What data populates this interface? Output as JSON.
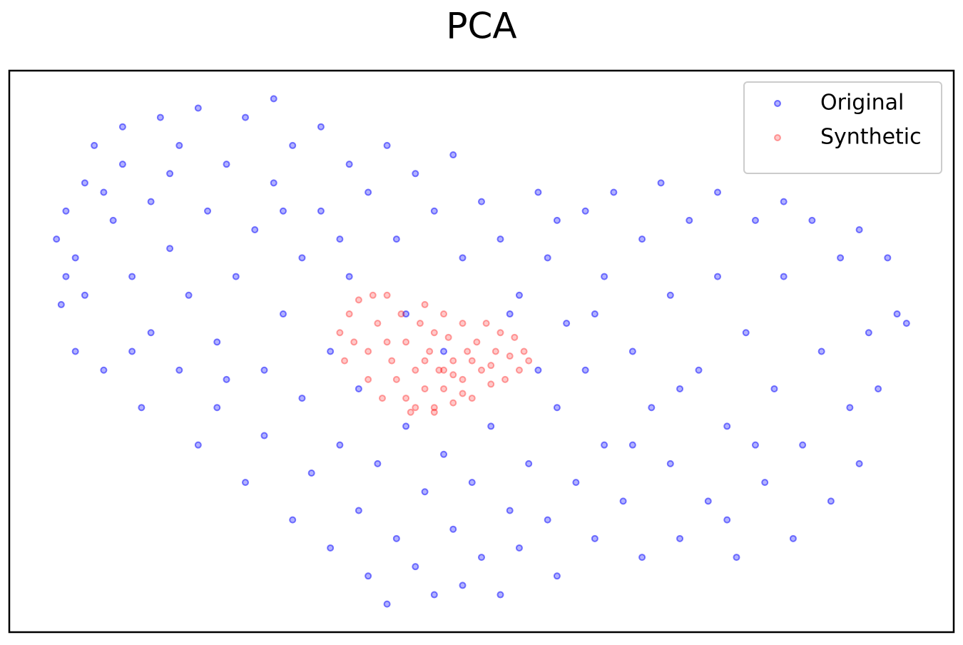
{
  "chart_data": {
    "type": "scatter",
    "title": "PCA",
    "legend": "upper right",
    "xlim": [
      0,
      100
    ],
    "ylim": [
      0,
      60
    ],
    "series": [
      {
        "name": "Original",
        "color": "#0000ff",
        "x": [
          5,
          5.5,
          6,
          7,
          7,
          8,
          9,
          8,
          10,
          11,
          12,
          12,
          13,
          14,
          15,
          15,
          16,
          17,
          18,
          18,
          19,
          20,
          20,
          21,
          22,
          22,
          23,
          24,
          25,
          25,
          26,
          27,
          27,
          28,
          28,
          29,
          30,
          30,
          31,
          31,
          32,
          33,
          33,
          34,
          34,
          35,
          36,
          36,
          37,
          37,
          38,
          38,
          39,
          40,
          40,
          41,
          41,
          42,
          43,
          43,
          44,
          45,
          45,
          46,
          47,
          47,
          48,
          48,
          49,
          50,
          50,
          51,
          52,
          52,
          53,
          54,
          54,
          55,
          56,
          56,
          57,
          57,
          58,
          58,
          59,
          60,
          61,
          61,
          62,
          63,
          63,
          64,
          65,
          66,
          67,
          67,
          68,
          69,
          70,
          70,
          71,
          72,
          73,
          74,
          75,
          75,
          76,
          77,
          78,
          79,
          80,
          81,
          82,
          82,
          83,
          84,
          85,
          86,
          87,
          88,
          89,
          90,
          90,
          91,
          92,
          93,
          94,
          95,
          6,
          10,
          13,
          17,
          23,
          29,
          35,
          42,
          46,
          53,
          58,
          62,
          66,
          71,
          76,
          79
        ],
        "y": [
          42,
          35,
          45,
          40,
          30,
          48,
          52,
          36,
          28,
          44,
          50,
          54,
          38,
          24,
          46,
          32,
          55,
          41,
          28,
          52,
          36,
          20,
          56,
          45,
          31,
          24,
          50,
          38,
          16,
          55,
          43,
          28,
          21,
          57,
          48,
          34,
          12,
          52,
          25,
          40,
          17,
          54,
          45,
          30,
          9,
          20,
          50,
          38,
          13,
          26,
          6,
          47,
          18,
          3,
          52,
          10,
          42,
          22,
          7,
          49,
          15,
          4,
          45,
          19,
          11,
          51,
          5,
          40,
          16,
          8,
          46,
          22,
          4,
          42,
          13,
          36,
          9,
          18,
          47,
          28,
          12,
          40,
          24,
          6,
          33,
          16,
          45,
          28,
          10,
          38,
          20,
          47,
          14,
          30,
          42,
          8,
          24,
          48,
          18,
          36,
          10,
          44,
          28,
          14,
          47,
          38,
          22,
          8,
          32,
          44,
          16,
          26,
          46,
          38,
          10,
          20,
          44,
          30,
          14,
          40,
          24,
          43,
          18,
          32,
          26,
          40,
          34,
          33,
          38,
          47,
          30,
          49,
          27,
          45,
          42,
          34,
          30,
          34,
          44,
          34,
          20,
          26,
          12,
          20
        ]
      },
      {
        "name": "Synthetic",
        "color": "#ff0000",
        "x": [
          35,
          35.5,
          36,
          37,
          38,
          38,
          39,
          39.5,
          40,
          40.5,
          41,
          41.5,
          42,
          42,
          42.5,
          43,
          43.5,
          44,
          44.5,
          45,
          45,
          45.5,
          46,
          46.5,
          47,
          47,
          48,
          48,
          48.5,
          49,
          49.5,
          50,
          50.5,
          51,
          51.5,
          52,
          52.5,
          53,
          53.5,
          54,
          54.5,
          55,
          44,
          46,
          38.5,
          36.5,
          43,
          45,
          47,
          49,
          44,
          46,
          51,
          48,
          40
        ],
        "y": [
          32,
          29,
          34,
          35.5,
          30,
          27,
          33,
          25,
          36,
          29,
          27,
          34,
          31,
          25,
          23.5,
          28,
          33,
          26,
          30,
          24,
          32,
          28,
          26,
          31.5,
          24.5,
          29,
          27,
          33,
          30,
          25,
          31,
          28,
          33,
          26.5,
          30,
          32,
          27,
          29.5,
          31.5,
          28,
          30,
          29,
          35,
          34,
          36,
          31,
          24,
          23.5,
          27.5,
          29,
          29,
          28,
          28.5,
          25.5,
          31
        ]
      }
    ]
  }
}
